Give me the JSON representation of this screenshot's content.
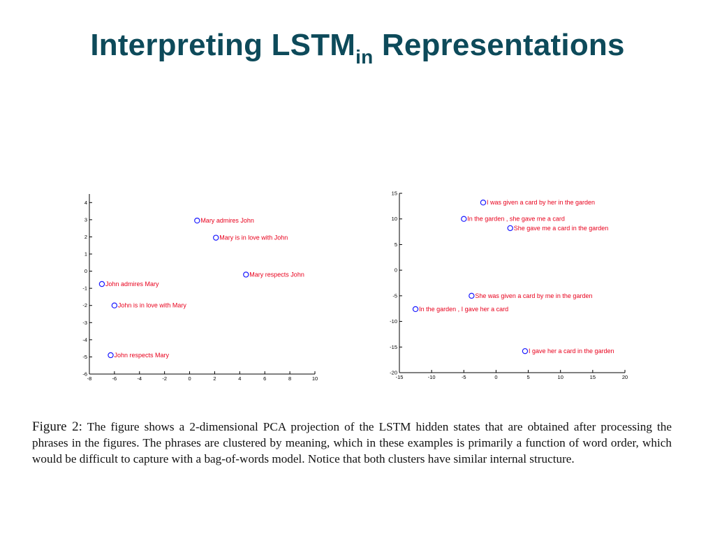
{
  "slide": {
    "title_main": "Interpreting LSTM",
    "title_sub": "in",
    "title_rest": "Representations"
  },
  "colors": {
    "title": "#0d4a5a",
    "point": "#1a1aff",
    "label": "#e8001c",
    "axis": "#000000"
  },
  "chart_data": [
    {
      "type": "scatter",
      "title": "",
      "xlabel": "",
      "ylabel": "",
      "xlim": [
        -8,
        10
      ],
      "ylim": [
        -6,
        4.5
      ],
      "xticks": [
        "-8",
        "-6",
        "-4",
        "-2",
        "0",
        "2",
        "4",
        "6",
        "8",
        "10"
      ],
      "yticks": [
        "-6",
        "-5",
        "-4",
        "-3",
        "-2",
        "-1",
        "0",
        "1",
        "2",
        "3",
        "4"
      ],
      "points": [
        {
          "x": 0.6,
          "y": 2.95,
          "label": "Mary admires John"
        },
        {
          "x": 2.1,
          "y": 1.95,
          "label": "Mary is in love with John"
        },
        {
          "x": 4.5,
          "y": -0.2,
          "label": "Mary respects John"
        },
        {
          "x": -7.0,
          "y": -0.75,
          "label": "John admires Mary"
        },
        {
          "x": -6.0,
          "y": -2.0,
          "label": "John is in love with Mary"
        },
        {
          "x": -6.3,
          "y": -4.9,
          "label": "John respects Mary"
        }
      ]
    },
    {
      "type": "scatter",
      "title": "",
      "xlabel": "",
      "ylabel": "",
      "xlim": [
        -15,
        20
      ],
      "ylim": [
        -20,
        15
      ],
      "xticks": [
        "-15",
        "-10",
        "-5",
        "0",
        "5",
        "10",
        "15",
        "20"
      ],
      "yticks": [
        "-20",
        "-15",
        "-10",
        "-5",
        "0",
        "5",
        "10",
        "15"
      ],
      "points": [
        {
          "x": -2.0,
          "y": 13.2,
          "label": "I was given a card by her in the garden"
        },
        {
          "x": -5.0,
          "y": 10.0,
          "label": "In the garden , she gave me a card"
        },
        {
          "x": 2.2,
          "y": 8.2,
          "label": "She gave me a card in the garden"
        },
        {
          "x": -3.8,
          "y": -5.0,
          "label": "She was given a card by me in the garden"
        },
        {
          "x": -12.5,
          "y": -7.6,
          "label": "In the garden , I gave her a card"
        },
        {
          "x": 4.5,
          "y": -15.8,
          "label": "I gave her a card in the garden"
        }
      ]
    }
  ],
  "caption": {
    "figure_label": "Figure 2:",
    "text": "The figure shows a 2-dimensional PCA projection of the LSTM hidden states that are obtained after processing the phrases in the figures. The phrases are clustered by meaning, which in these examples is primarily a function of word order, which would be difficult to capture with a bag-of-words model. Notice that both clusters have similar internal structure."
  }
}
